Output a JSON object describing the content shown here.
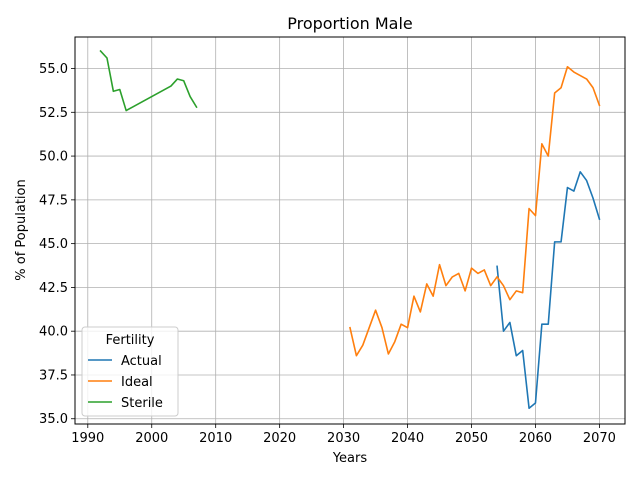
{
  "chart_data": {
    "type": "line",
    "title": "Proportion Male",
    "xlabel": "Years",
    "ylabel": "% of Population",
    "xlim": [
      1988,
      2074
    ],
    "ylim": [
      34.7,
      56.8
    ],
    "xticks": [
      1990,
      2000,
      2010,
      2020,
      2030,
      2040,
      2050,
      2060,
      2070
    ],
    "yticks": [
      35.0,
      37.5,
      40.0,
      42.5,
      45.0,
      47.5,
      50.0,
      52.5,
      55.0
    ],
    "xtick_labels": [
      "1990",
      "2000",
      "2010",
      "2020",
      "2030",
      "2040",
      "2050",
      "2060",
      "2070"
    ],
    "ytick_labels": [
      "35.0",
      "37.5",
      "40.0",
      "42.5",
      "45.0",
      "47.5",
      "50.0",
      "52.5",
      "55.0"
    ],
    "grid": true,
    "legend": {
      "title": "Fertility",
      "position": "lower-left"
    },
    "series": [
      {
        "name": "Actual",
        "color": "#1f77b4",
        "x": [
          2054,
          2055,
          2056,
          2057,
          2058,
          2059,
          2060,
          2061,
          2062,
          2063,
          2064,
          2065,
          2066,
          2067,
          2068,
          2069,
          2070
        ],
        "values": [
          43.7,
          40.0,
          40.5,
          38.6,
          38.9,
          35.6,
          35.9,
          40.4,
          40.4,
          45.1,
          45.1,
          48.2,
          48.0,
          49.1,
          48.6,
          47.6,
          46.4
        ]
      },
      {
        "name": "Ideal",
        "color": "#ff7f0e",
        "x": [
          2031,
          2032,
          2033,
          2034,
          2035,
          2036,
          2037,
          2038,
          2039,
          2040,
          2041,
          2042,
          2043,
          2044,
          2045,
          2046,
          2047,
          2048,
          2049,
          2050,
          2051,
          2052,
          2053,
          2054,
          2055,
          2056,
          2057,
          2058,
          2059,
          2060,
          2061,
          2062,
          2063,
          2064,
          2065,
          2066,
          2067,
          2068,
          2069,
          2070
        ],
        "values": [
          40.2,
          38.6,
          39.2,
          40.2,
          41.2,
          40.2,
          38.7,
          39.4,
          40.4,
          40.2,
          42.0,
          41.1,
          42.7,
          42.0,
          43.8,
          42.6,
          43.1,
          43.3,
          42.3,
          43.6,
          43.3,
          43.5,
          42.6,
          43.1,
          42.6,
          41.8,
          42.3,
          42.2,
          47.0,
          46.6,
          50.7,
          50.0,
          53.6,
          53.9,
          55.1,
          54.8,
          54.6,
          54.4,
          53.9,
          52.9
        ]
      },
      {
        "name": "Sterile",
        "color": "#2ca02c",
        "x": [
          1992,
          1993,
          1994,
          1995,
          1996,
          1997,
          1998,
          1999,
          2000,
          2001,
          2002,
          2003,
          2004,
          2005,
          2006,
          2007
        ],
        "values": [
          56.0,
          55.6,
          53.7,
          53.8,
          52.6,
          52.8,
          53.0,
          53.2,
          53.4,
          53.6,
          53.8,
          54.0,
          54.4,
          54.3,
          53.4,
          52.8
        ]
      }
    ]
  }
}
